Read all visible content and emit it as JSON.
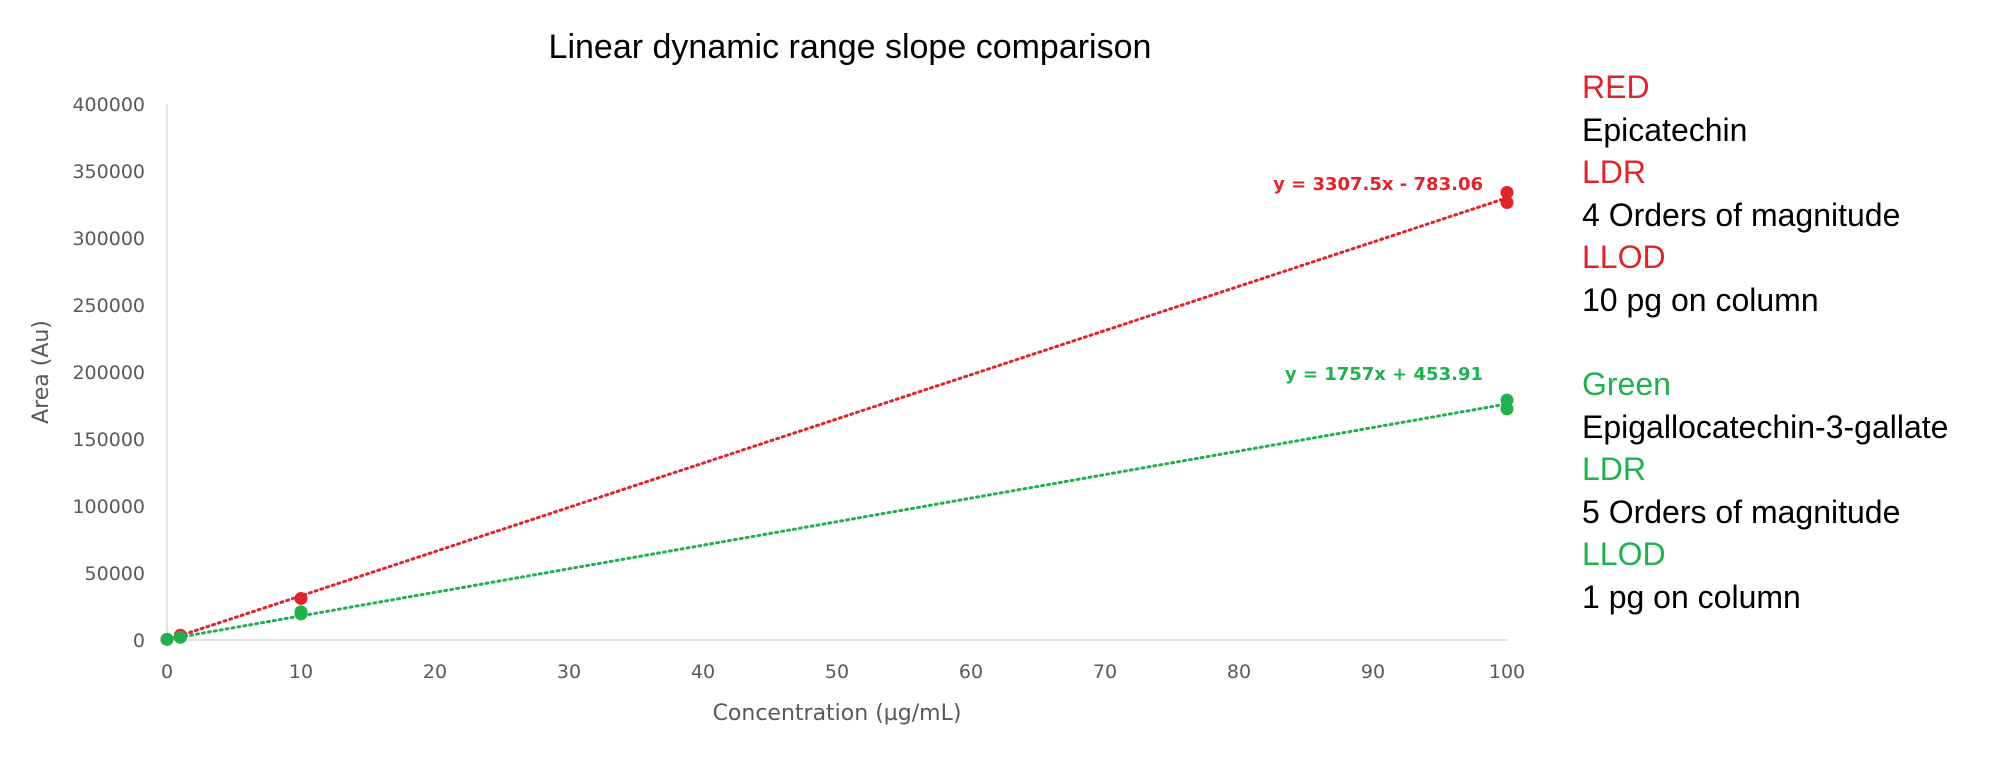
{
  "chart_data": {
    "type": "scatter",
    "title": "Linear dynamic range slope comparison",
    "xlabel": "Concentration (µg/mL)",
    "ylabel": "Area (Au)",
    "xlim": [
      0,
      100
    ],
    "ylim": [
      0,
      400000
    ],
    "x_ticks": [
      "0",
      "10",
      "20",
      "30",
      "40",
      "50",
      "60",
      "70",
      "80",
      "90",
      "100"
    ],
    "y_ticks": [
      "0",
      "50000",
      "100000",
      "150000",
      "200000",
      "250000",
      "300000",
      "350000",
      "400000"
    ],
    "grid": false,
    "series": [
      {
        "color": "#e0242b",
        "points": [
          [
            0,
            500
          ],
          [
            1,
            3500
          ],
          [
            10,
            31000
          ],
          [
            100,
            334000
          ],
          [
            100,
            326500
          ]
        ],
        "trendline": {
          "slope": 3307.5,
          "intercept": -783.06,
          "label": "y = 3307.5x - 783.06"
        }
      },
      {
        "color": "#22b04f",
        "points": [
          [
            0,
            500
          ],
          [
            1,
            2000
          ],
          [
            10,
            19500
          ],
          [
            10,
            21000
          ],
          [
            100,
            179000
          ],
          [
            100,
            172500
          ]
        ],
        "trendline": {
          "slope": 1757,
          "intercept": 453.91,
          "label": "y = 1757x + 453.91"
        }
      }
    ]
  },
  "legend_panel": {
    "group1": {
      "color": "#e0242b",
      "color_name": "RED",
      "compound": "Epicatechin",
      "ldr_label": "LDR",
      "ldr_value": "4 Orders of magnitude",
      "llod_label": "LLOD",
      "llod_value": "10 pg on column"
    },
    "group2": {
      "color": "#22b04f",
      "color_name": "Green",
      "compound": "Epigallocatechin-3-gallate",
      "ldr_label": "LDR",
      "ldr_value": "5 Orders of magnitude",
      "llod_label": "LLOD",
      "llod_value": "1 pg on column"
    }
  }
}
